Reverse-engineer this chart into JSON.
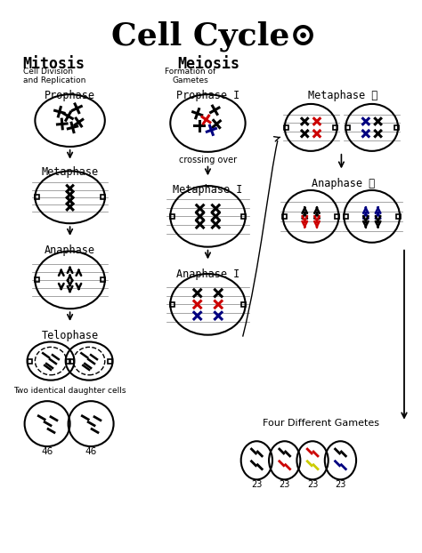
{
  "title": "Cell Cycle⊙",
  "title_fontsize": 26,
  "bg_color": "#ffffff",
  "mitosis_label": "Mitosis",
  "mitosis_sub": "Cell Division\nand Replication",
  "meiosis_label": "Meiosis",
  "meiosis_sub": "Formation of\nGametes",
  "gamete_numbers": [
    "23",
    "23",
    "23",
    "23"
  ],
  "daughter_numbers": [
    "46",
    "46"
  ]
}
